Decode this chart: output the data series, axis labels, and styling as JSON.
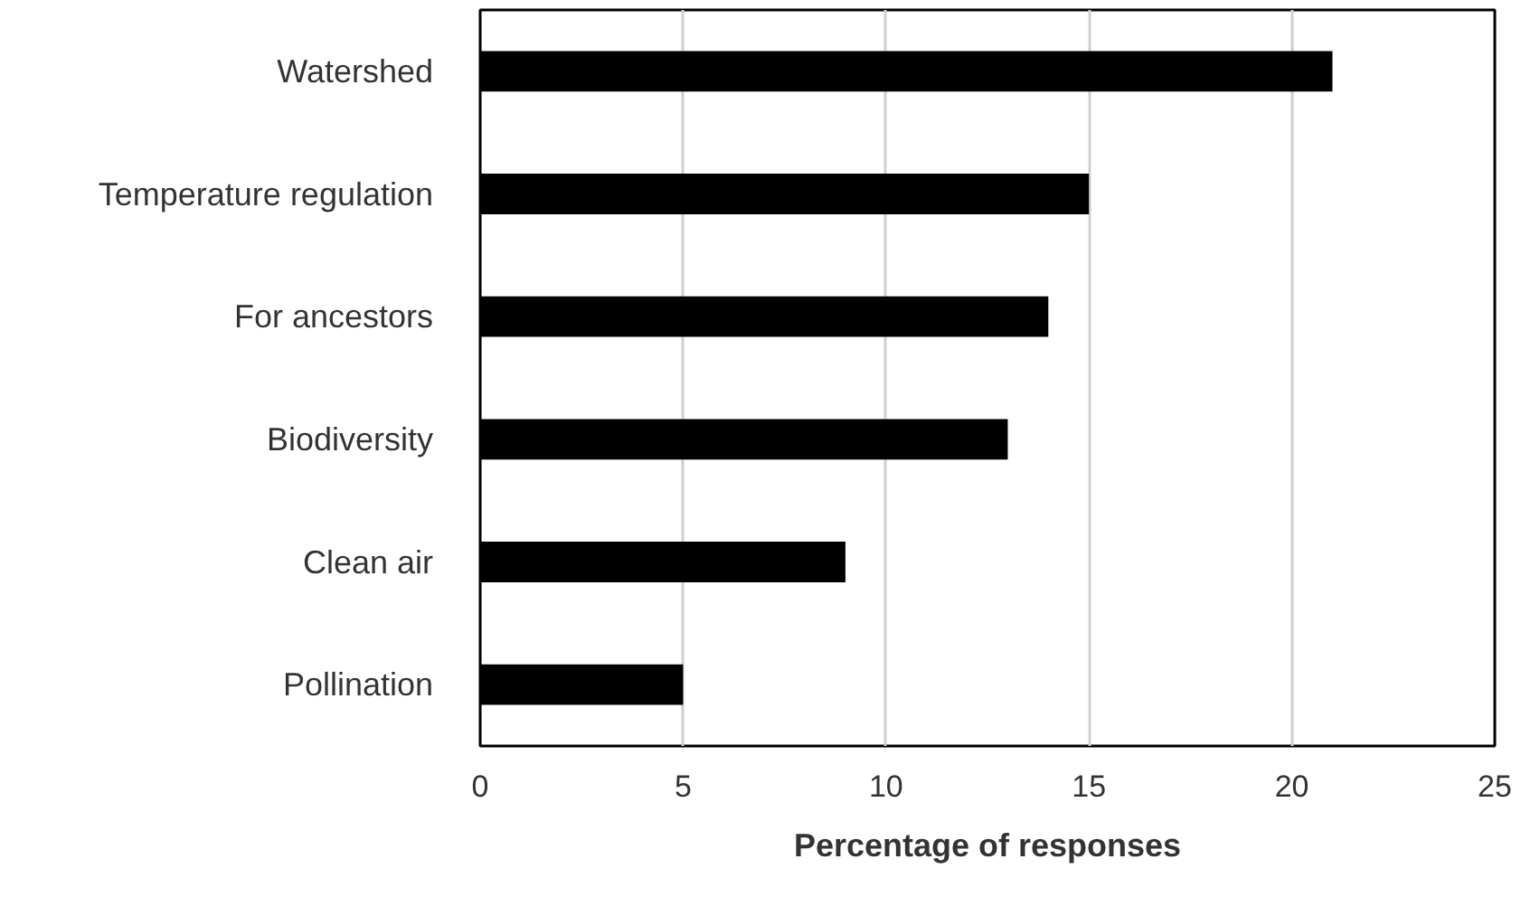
{
  "chart_data": {
    "type": "bar",
    "orientation": "horizontal",
    "xlabel": "Percentage of responses",
    "categories": [
      "Watershed",
      "Temperature regulation",
      "For ancestors",
      "Biodiversity",
      "Clean air",
      "Pollination"
    ],
    "values": [
      21,
      15,
      14,
      13,
      9,
      5
    ],
    "color": "#000000",
    "xlim": [
      0,
      25
    ],
    "xticks": [
      0,
      5,
      10,
      15,
      20,
      25
    ],
    "grid": "x"
  }
}
